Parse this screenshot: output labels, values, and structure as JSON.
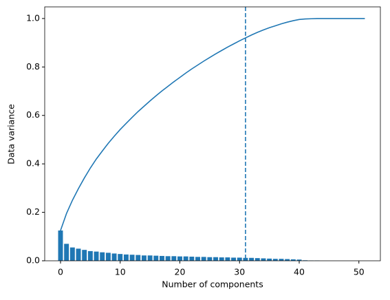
{
  "chart_data": {
    "type": "combo",
    "x_label": "Number of components",
    "y_label": "Data variance",
    "x": [
      0,
      1,
      2,
      3,
      4,
      5,
      6,
      7,
      8,
      9,
      10,
      11,
      12,
      13,
      14,
      15,
      16,
      17,
      18,
      19,
      20,
      21,
      22,
      23,
      24,
      25,
      26,
      27,
      28,
      29,
      30,
      31,
      32,
      33,
      34,
      35,
      36,
      37,
      38,
      39,
      40,
      41,
      42,
      43,
      44,
      45,
      46,
      47,
      48,
      49,
      50,
      51
    ],
    "series": [
      {
        "type": "bar",
        "color": "#1f77b4",
        "values": [
          0.125,
          0.07,
          0.055,
          0.05,
          0.045,
          0.04,
          0.038,
          0.035,
          0.033,
          0.03,
          0.028,
          0.026,
          0.025,
          0.024,
          0.022,
          0.022,
          0.021,
          0.02,
          0.019,
          0.019,
          0.018,
          0.018,
          0.017,
          0.016,
          0.016,
          0.015,
          0.015,
          0.014,
          0.014,
          0.013,
          0.013,
          0.012,
          0.012,
          0.011,
          0.01,
          0.009,
          0.008,
          0.008,
          0.007,
          0.006,
          0.005,
          0.002,
          0.001,
          0.001,
          0,
          0,
          0,
          0,
          0,
          0,
          0,
          0
        ]
      },
      {
        "type": "line",
        "color": "#1f77b4",
        "values": [
          0.125,
          0.195,
          0.25,
          0.298,
          0.342,
          0.383,
          0.42,
          0.453,
          0.485,
          0.514,
          0.542,
          0.567,
          0.592,
          0.616,
          0.638,
          0.66,
          0.681,
          0.701,
          0.72,
          0.739,
          0.757,
          0.775,
          0.792,
          0.808,
          0.824,
          0.839,
          0.854,
          0.868,
          0.882,
          0.895,
          0.908,
          0.92,
          0.932,
          0.943,
          0.953,
          0.962,
          0.97,
          0.978,
          0.985,
          0.991,
          0.996,
          0.998,
          0.999,
          1,
          1,
          1,
          1,
          1,
          1,
          1,
          1,
          1
        ]
      }
    ],
    "vline": {
      "x": 31,
      "color": "#1f77b4",
      "style": "dashed"
    },
    "xlim": [
      -2.65,
      53.6
    ],
    "xticks": [
      0,
      10,
      20,
      30,
      40,
      50
    ],
    "ylim": [
      0,
      1.048
    ],
    "yticks": [
      {
        "value": 0,
        "label": "0.0"
      },
      0.2,
      0.4,
      0.6,
      0.8,
      {
        "value": 1,
        "label": "1.0"
      }
    ],
    "grid": false
  }
}
